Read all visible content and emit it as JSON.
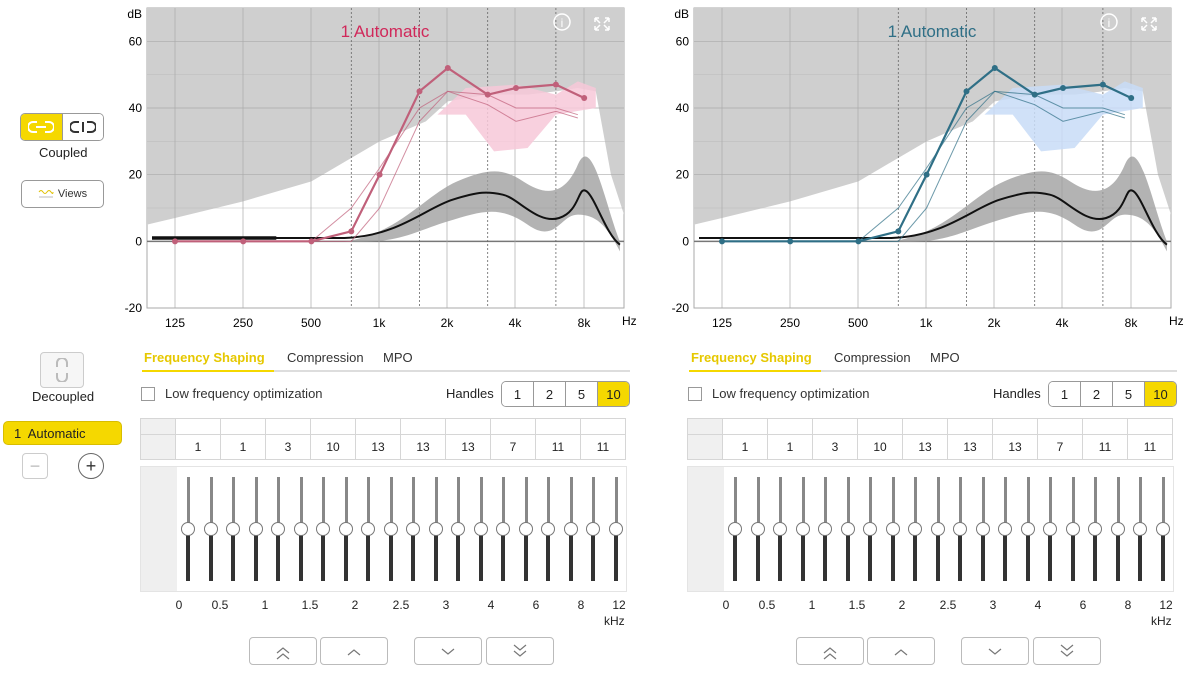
{
  "left_panel": {
    "coupled_label": "Coupled",
    "views_label": "Views",
    "decoupled_label": "Decoupled",
    "program_label": "1  Automatic",
    "remove_program": "−",
    "add_program": "+"
  },
  "graph_axis": {
    "unit_db": "dB",
    "unit_hz": "Hz",
    "y_ticks": [
      "60",
      "40",
      "20",
      "0",
      "-20"
    ],
    "x_ticks": [
      "125",
      "250",
      "500",
      "1k",
      "2k",
      "4k",
      "8k"
    ]
  },
  "colors": {
    "accent": "#f5d800",
    "left_curve": "#c0607a",
    "right_curve": "#2f6f86",
    "left_band": "#f7c8d8",
    "right_band": "#c8dcf7"
  },
  "sides": [
    {
      "title": "1 Automatic",
      "title_color": "#d0285a",
      "tabs": [
        "Frequency Shaping",
        "Compression",
        "MPO"
      ],
      "lfo_label": "Low frequency optimization",
      "handles_label": "Handles",
      "handles": [
        "1",
        "2",
        "5",
        "10"
      ],
      "gains": [
        "1",
        "1",
        "3",
        "10",
        "13",
        "13",
        "13",
        "7",
        "11",
        "11"
      ],
      "freq_labels": [
        "0",
        "0.5",
        "1",
        "1.5",
        "2",
        "2.5",
        "3",
        "4",
        "6",
        "8",
        "12"
      ],
      "khz": "kHz"
    },
    {
      "title": "1 Automatic",
      "title_color": "#2f6f86",
      "tabs": [
        "Frequency Shaping",
        "Compression",
        "MPO"
      ],
      "lfo_label": "Low frequency optimization",
      "handles_label": "Handles",
      "handles": [
        "1",
        "2",
        "5",
        "10"
      ],
      "gains": [
        "1",
        "1",
        "3",
        "10",
        "13",
        "13",
        "13",
        "7",
        "11",
        "11"
      ],
      "freq_labels": [
        "0",
        "0.5",
        "1",
        "1.5",
        "2",
        "2.5",
        "3",
        "4",
        "6",
        "8",
        "12"
      ],
      "khz": "kHz"
    }
  ]
}
